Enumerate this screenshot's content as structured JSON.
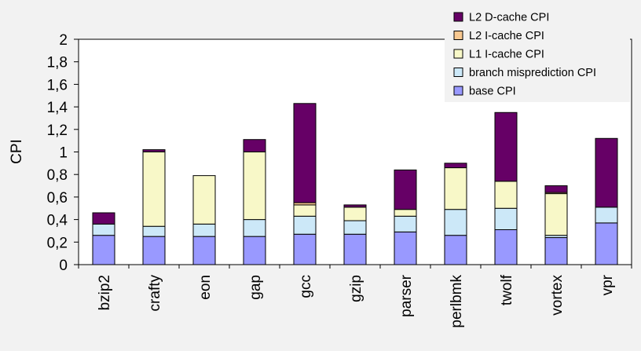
{
  "chart_data": {
    "type": "bar",
    "stacked": true,
    "title": "",
    "xlabel": "",
    "ylabel": "CPI",
    "ylim": [
      0,
      2
    ],
    "yticks": [
      0,
      0.2,
      0.4,
      0.6,
      0.8,
      1,
      1.2,
      1.4,
      1.6,
      1.8,
      2
    ],
    "ytick_labels": [
      "0",
      "0,2",
      "0,4",
      "0,6",
      "0,8",
      "1",
      "1,2",
      "1,4",
      "1,6",
      "1,8",
      "2"
    ],
    "grid": false,
    "legend_position": "top-right",
    "categories": [
      "bzip2",
      "crafty",
      "eon",
      "gap",
      "gcc",
      "gzip",
      "parser",
      "perlbmk",
      "twolf",
      "vortex",
      "vpr"
    ],
    "series": [
      {
        "name": "base CPI",
        "color": "#9999ff",
        "values": [
          0.26,
          0.25,
          0.25,
          0.25,
          0.27,
          0.27,
          0.29,
          0.26,
          0.31,
          0.24,
          0.37
        ]
      },
      {
        "name": "branch misprediction CPI",
        "color": "#cce8f8",
        "values": [
          0.1,
          0.09,
          0.11,
          0.15,
          0.16,
          0.12,
          0.14,
          0.23,
          0.19,
          0.02,
          0.14
        ]
      },
      {
        "name": "L1 I-cache CPI",
        "color": "#f8f8c8",
        "values": [
          0.0,
          0.66,
          0.43,
          0.6,
          0.1,
          0.12,
          0.06,
          0.37,
          0.24,
          0.37,
          0.0
        ]
      },
      {
        "name": "L2 I-cache CPI",
        "color": "#f8c890",
        "values": [
          0.0,
          0.0,
          0.0,
          0.0,
          0.02,
          0.0,
          0.0,
          0.0,
          0.0,
          0.01,
          0.0
        ]
      },
      {
        "name": "L2 D-cache CPI",
        "color": "#660066",
        "values": [
          0.1,
          0.02,
          0.0,
          0.11,
          0.88,
          0.02,
          0.35,
          0.04,
          0.61,
          0.06,
          0.61
        ]
      }
    ]
  }
}
